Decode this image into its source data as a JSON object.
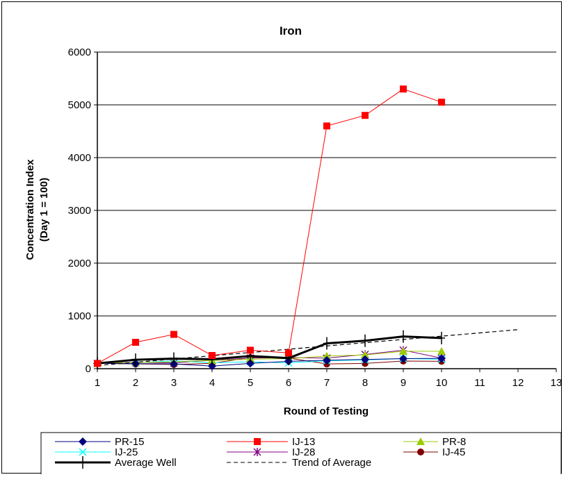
{
  "chart_data": {
    "type": "line",
    "title": "Iron",
    "xlabel": "Round of Testing",
    "ylabel": [
      "Concentration Index",
      "(Day 1 = 100)"
    ],
    "xlim": [
      1,
      13
    ],
    "ylim": [
      0,
      6000
    ],
    "x_ticks": [
      "1",
      "2",
      "3",
      "4",
      "5",
      "6",
      "7",
      "8",
      "9",
      "10",
      "11",
      "12",
      "13"
    ],
    "y_ticks": [
      "0",
      "1000",
      "2000",
      "3000",
      "4000",
      "5000",
      "6000"
    ],
    "y_tick_values": [
      0,
      1000,
      2000,
      3000,
      4000,
      5000,
      6000
    ],
    "grid": "horizontal",
    "legend": "bottom",
    "series": [
      {
        "name": "PR-15",
        "color": "#000080",
        "marker": "diamond",
        "x": [
          1,
          2,
          3,
          4,
          5,
          6,
          7,
          8,
          9,
          10
        ],
        "values": [
          100,
          95,
          90,
          50,
          100,
          140,
          160,
          175,
          190,
          195
        ]
      },
      {
        "name": "IJ-13",
        "color": "#ff0000",
        "marker": "square",
        "x": [
          1,
          2,
          3,
          4,
          5,
          6,
          7,
          8,
          9,
          10
        ],
        "values": [
          100,
          500,
          650,
          250,
          350,
          300,
          4600,
          4800,
          5300,
          5050
        ]
      },
      {
        "name": "PR-8",
        "color": "#99cc00",
        "marker": "triangle",
        "x": [
          1,
          2,
          3,
          4,
          5,
          6,
          7,
          8,
          9,
          10
        ],
        "values": [
          100,
          115,
          130,
          155,
          180,
          190,
          240,
          260,
          330,
          330
        ]
      },
      {
        "name": "IJ-25",
        "color": "#00ffff",
        "marker": "x",
        "x": [
          1,
          2,
          3,
          4,
          5,
          6,
          7,
          8,
          9,
          10
        ],
        "values": [
          100,
          110,
          150,
          110,
          130,
          110,
          150,
          165,
          190,
          180
        ]
      },
      {
        "name": "IJ-28",
        "color": "#800080",
        "marker": "star",
        "x": [
          1,
          2,
          3,
          4,
          5,
          6,
          7,
          8,
          9,
          10
        ],
        "values": [
          100,
          120,
          110,
          160,
          200,
          210,
          200,
          270,
          350,
          200
        ]
      },
      {
        "name": "IJ-45",
        "color": "#800000",
        "marker": "circle",
        "x": [
          1,
          2,
          3,
          4,
          5,
          6,
          7,
          8,
          9,
          10
        ],
        "values": [
          100,
          90,
          80,
          100,
          210,
          200,
          90,
          100,
          145,
          140
        ]
      },
      {
        "name": "Average Well",
        "color": "#000000",
        "marker": "plus",
        "style": "thick",
        "x": [
          1,
          2,
          3,
          4,
          5,
          6,
          7,
          8,
          9,
          10
        ],
        "values": [
          100,
          170,
          190,
          180,
          240,
          200,
          480,
          530,
          610,
          580
        ]
      },
      {
        "name": "Trend of Average",
        "color": "#000000",
        "style": "dashed",
        "x": [
          1,
          12
        ],
        "values": [
          60,
          740
        ]
      }
    ]
  }
}
